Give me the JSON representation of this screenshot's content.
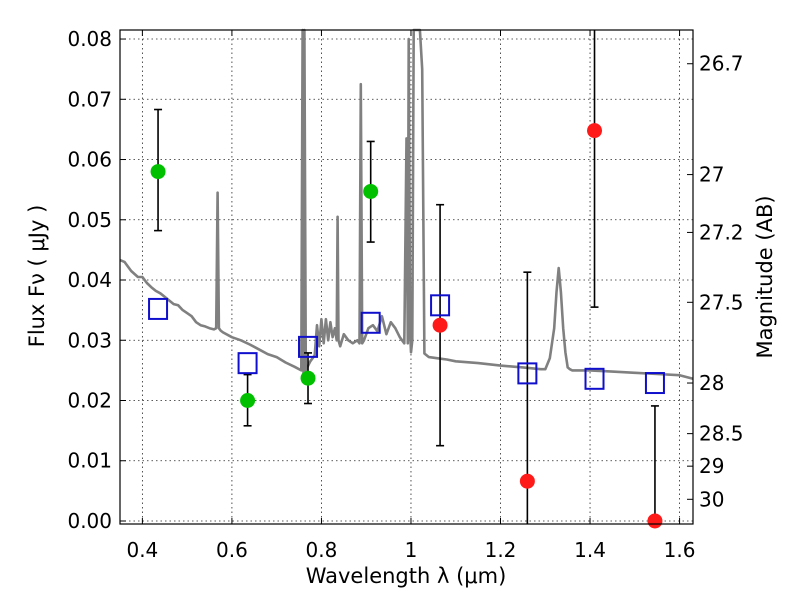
{
  "chart_data": {
    "type": "scatter",
    "title": "",
    "xlabel": "Wavelength  λ (μm)",
    "ylabel": "Flux  Fν  ( μJy )",
    "y2label": "Magnitude (AB)",
    "xlim": [
      0.35,
      1.63
    ],
    "ylim": [
      -0.0005,
      0.0815
    ],
    "grid": true,
    "x_ticks": [
      0.4,
      0.6,
      0.8,
      1.0,
      1.2,
      1.4,
      1.6
    ],
    "x_tick_labels": [
      "0.4",
      "0.6",
      "0.8",
      "1",
      "1.2",
      "1.4",
      "1.6"
    ],
    "y_ticks": [
      0.0,
      0.01,
      0.02,
      0.03,
      0.04,
      0.05,
      0.06,
      0.07,
      0.08
    ],
    "y_tick_labels": [
      "0.00",
      "0.01",
      "0.02",
      "0.03",
      "0.04",
      "0.05",
      "0.06",
      "0.07",
      "0.08"
    ],
    "y2_ticks": [
      {
        "label": "26.7",
        "flux": 0.0759
      },
      {
        "label": "27",
        "flux": 0.0575
      },
      {
        "label": "27.2",
        "flux": 0.0479
      },
      {
        "label": "27.5",
        "flux": 0.0363
      },
      {
        "label": "28",
        "flux": 0.0229
      },
      {
        "label": "28.5",
        "flux": 0.0145
      },
      {
        "label": "29",
        "flux": 0.0091
      },
      {
        "label": "30",
        "flux": 0.0036
      }
    ],
    "series": [
      {
        "marker": "circle",
        "color": "#00c000",
        "x": [
          0.435,
          0.635,
          0.77,
          0.91
        ],
        "y": [
          0.058,
          0.02,
          0.0237,
          0.0547
        ],
        "err_low": [
          0.0482,
          0.0158,
          0.0195,
          0.0463
        ],
        "err_high": [
          0.0683,
          0.0243,
          0.0279,
          0.063
        ]
      },
      {
        "marker": "circle",
        "color": "#ff1a1a",
        "x": [
          1.065,
          1.26,
          1.41,
          1.545
        ],
        "y": [
          0.0325,
          0.0066,
          0.0648,
          0.0
        ],
        "err_low": [
          0.0125,
          -0.001,
          0.0355,
          -0.001
        ],
        "err_high": [
          0.0525,
          0.0413,
          0.0815,
          0.0191
        ]
      },
      {
        "marker": "open-square",
        "color": "#1010cc",
        "x": [
          0.435,
          0.635,
          0.77,
          0.91,
          1.065,
          1.26,
          1.41,
          1.545
        ],
        "y": [
          0.0352,
          0.0262,
          0.0289,
          0.0329,
          0.0358,
          0.0245,
          0.0236,
          0.0229
        ]
      },
      {
        "marker": "line",
        "color": "#808080",
        "x": [
          0.35,
          0.36,
          0.375,
          0.39,
          0.4,
          0.41,
          0.42,
          0.43,
          0.44,
          0.45,
          0.46,
          0.47,
          0.48,
          0.49,
          0.5,
          0.51,
          0.52,
          0.53,
          0.54,
          0.55,
          0.56,
          0.565,
          0.568,
          0.571,
          0.575,
          0.58,
          0.6,
          0.62,
          0.64,
          0.66,
          0.68,
          0.7,
          0.72,
          0.74,
          0.755,
          0.758,
          0.76,
          0.762,
          0.765,
          0.775,
          0.785,
          0.79,
          0.795,
          0.8,
          0.805,
          0.81,
          0.815,
          0.82,
          0.825,
          0.83,
          0.834,
          0.836,
          0.838,
          0.842,
          0.85,
          0.86,
          0.87,
          0.88,
          0.885,
          0.888,
          0.891,
          0.895,
          0.905,
          0.915,
          0.925,
          0.935,
          0.945,
          0.955,
          0.965,
          0.975,
          0.985,
          0.99,
          0.993,
          0.995,
          0.998,
          1.0,
          1.003,
          1.006,
          1.01,
          1.015,
          1.02,
          1.025,
          1.03,
          1.04,
          1.06,
          1.08,
          1.1,
          1.15,
          1.2,
          1.25,
          1.29,
          1.3,
          1.31,
          1.32,
          1.325,
          1.33,
          1.335,
          1.34,
          1.345,
          1.35,
          1.355,
          1.36,
          1.38,
          1.4,
          1.45,
          1.5,
          1.55,
          1.6,
          1.63
        ],
        "y": [
          0.0433,
          0.043,
          0.0415,
          0.0405,
          0.0405,
          0.0395,
          0.0388,
          0.0382,
          0.0378,
          0.0372,
          0.0366,
          0.036,
          0.0358,
          0.035,
          0.0345,
          0.034,
          0.033,
          0.0325,
          0.0323,
          0.032,
          0.0318,
          0.032,
          0.0545,
          0.032,
          0.0316,
          0.0313,
          0.0305,
          0.03,
          0.0293,
          0.0285,
          0.0277,
          0.0272,
          0.0263,
          0.0256,
          0.025,
          0.0815,
          0.0245,
          0.0815,
          0.025,
          0.0265,
          0.0275,
          0.0325,
          0.029,
          0.0335,
          0.0295,
          0.0335,
          0.03,
          0.033,
          0.0305,
          0.032,
          0.03,
          0.0505,
          0.03,
          0.029,
          0.031,
          0.03,
          0.0295,
          0.03,
          0.0295,
          0.0725,
          0.0295,
          0.03,
          0.032,
          0.0325,
          0.0315,
          0.034,
          0.031,
          0.033,
          0.032,
          0.0305,
          0.0295,
          0.0635,
          0.0295,
          0.08,
          0.0315,
          0.028,
          0.03,
          0.0815,
          0.0815,
          0.0815,
          0.0815,
          0.075,
          0.0278,
          0.0272,
          0.027,
          0.0268,
          0.0265,
          0.0262,
          0.0258,
          0.0255,
          0.0252,
          0.0252,
          0.027,
          0.032,
          0.038,
          0.042,
          0.038,
          0.032,
          0.028,
          0.0255,
          0.0252,
          0.025,
          0.025,
          0.025,
          0.0248,
          0.0246,
          0.0244,
          0.0242,
          0.0236
        ]
      }
    ]
  }
}
